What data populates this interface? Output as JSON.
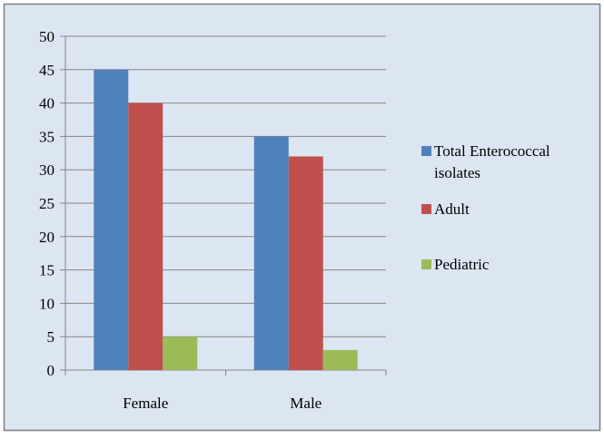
{
  "chart_data": {
    "type": "bar",
    "categories": [
      "Female",
      "Male"
    ],
    "series": [
      {
        "name": "Total Enterococcal isolates",
        "legend_lines": [
          "Total Enterococcal",
          "isolates"
        ],
        "values": [
          45,
          35
        ],
        "color": "#4f81bd"
      },
      {
        "name": "Adult",
        "legend_lines": [
          "Adult"
        ],
        "values": [
          40,
          32
        ],
        "color": "#c0504d"
      },
      {
        "name": "Pediatric",
        "legend_lines": [
          "Pediatric"
        ],
        "values": [
          5,
          3
        ],
        "color": "#9bbb59"
      }
    ],
    "ylim": [
      0,
      50
    ],
    "yticks": [
      0,
      5,
      10,
      15,
      20,
      25,
      30,
      35,
      40,
      45,
      50
    ],
    "grid": true,
    "legend_position": "right",
    "background": "#dce6f2",
    "border_color": "#7f7f7f"
  }
}
